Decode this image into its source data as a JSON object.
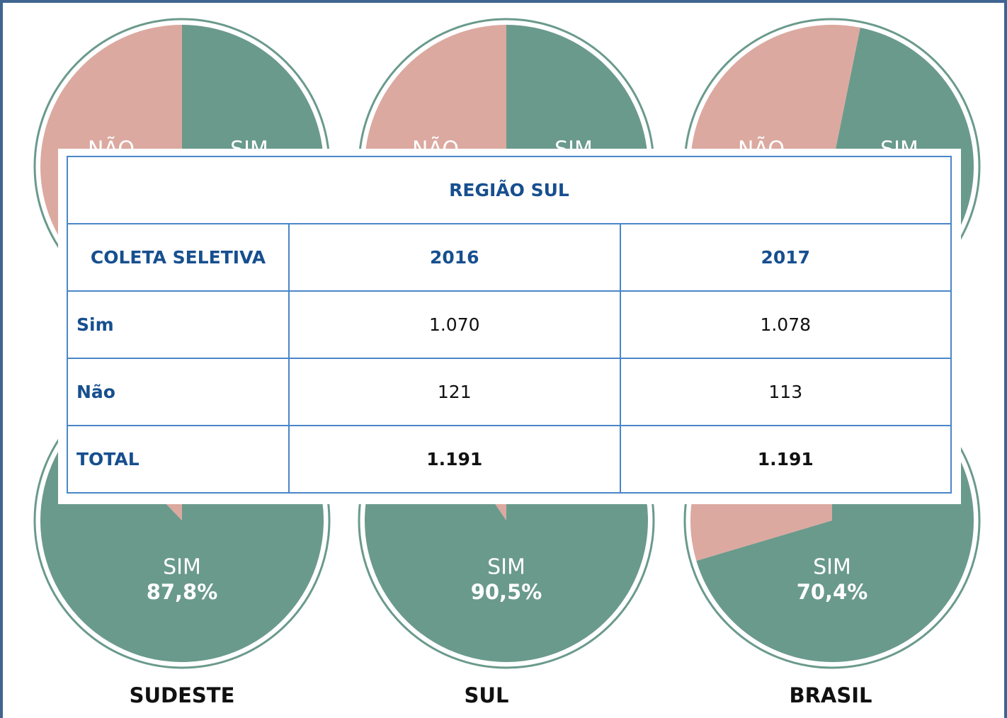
{
  "top_pies": [
    {
      "labels": [
        "NÃO",
        "SIM"
      ]
    },
    {
      "labels": [
        "NÃO",
        "SIM"
      ]
    },
    {
      "labels": [
        "NÃO",
        "SIM"
      ]
    }
  ],
  "chart_data": [
    {
      "type": "pie",
      "title": "SUDESTE",
      "label": "SIM",
      "value": 87.8,
      "value_label": "87,8%"
    },
    {
      "type": "pie",
      "title": "SUL",
      "label": "SIM",
      "value": 90.5,
      "value_label": "90,5%"
    },
    {
      "type": "pie",
      "title": "BRASIL",
      "label": "SIM",
      "value": 70.4,
      "value_label": "70,4%"
    }
  ],
  "table": {
    "title": "REGIÃO SUL",
    "header": [
      "COLETA SELETIVA",
      "2016",
      "2017"
    ],
    "rows": [
      [
        "Sim",
        "1.070",
        "1.078"
      ],
      [
        "Não",
        "121",
        "113"
      ],
      [
        "TOTAL",
        "1.191",
        "1.191"
      ]
    ]
  }
}
